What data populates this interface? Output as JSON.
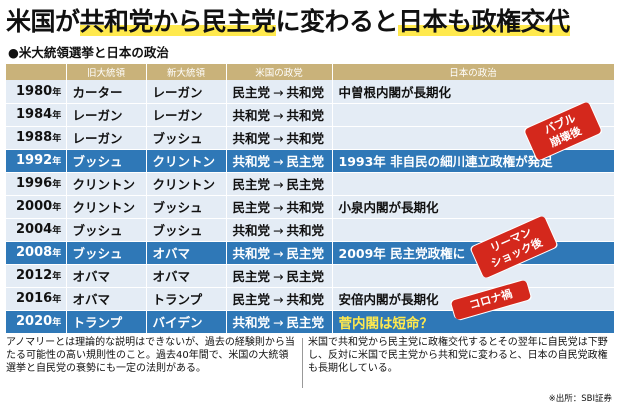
{
  "headline": {
    "part1": "米国が",
    "part2": "共和党から民主党",
    "part3": "に変わると",
    "part4": "日本も政権交代"
  },
  "subtitle": "●米大統領選挙と日本の政治",
  "table": {
    "headers": [
      "",
      "旧大統領",
      "新大統領",
      "米国の政党",
      "日本の政治"
    ],
    "year_suffix": "年",
    "rows": [
      {
        "year": "1980",
        "old": "カーター",
        "new": "レーガン",
        "from": "民主党",
        "to": "共和党",
        "note": "中曽根内閣が長期化",
        "type": "normal"
      },
      {
        "year": "1984",
        "old": "レーガン",
        "new": "レーガン",
        "from": "共和党",
        "to": "共和党",
        "note": "",
        "type": "normal"
      },
      {
        "year": "1988",
        "old": "レーガン",
        "new": "ブッシュ",
        "from": "共和党",
        "to": "共和党",
        "note": "",
        "type": "normal"
      },
      {
        "year": "1992",
        "old": "ブッシュ",
        "new": "クリントン",
        "from": "共和党",
        "to": "民主党",
        "note": "1993年 非自民の細川連立政権が発足",
        "type": "change"
      },
      {
        "year": "1996",
        "old": "クリントン",
        "new": "クリントン",
        "from": "民主党",
        "to": "民主党",
        "note": "",
        "type": "normal"
      },
      {
        "year": "2000",
        "old": "クリントン",
        "new": "ブッシュ",
        "from": "民主党",
        "to": "共和党",
        "note": "小泉内閣が長期化",
        "type": "normal"
      },
      {
        "year": "2004",
        "old": "ブッシュ",
        "new": "ブッシュ",
        "from": "共和党",
        "to": "共和党",
        "note": "",
        "type": "normal"
      },
      {
        "year": "2008",
        "old": "ブッシュ",
        "new": "オバマ",
        "from": "共和党",
        "to": "民主党",
        "note": "2009年 民主党政権に",
        "type": "change"
      },
      {
        "year": "2012",
        "old": "オバマ",
        "new": "オバマ",
        "from": "民主党",
        "to": "民主党",
        "note": "",
        "type": "normal"
      },
      {
        "year": "2016",
        "old": "オバマ",
        "new": "トランプ",
        "from": "民主党",
        "to": "共和党",
        "note": "安倍内閣が長期化",
        "type": "normal"
      },
      {
        "year": "2020",
        "old": "トランプ",
        "new": "バイデン",
        "from": "共和党",
        "to": "民主党",
        "note": "菅内閣は短命？",
        "type": "change"
      }
    ]
  },
  "callouts": {
    "bubble": "バブル\n崩壊後",
    "lehman": "リーマン\nショック後",
    "covid": "コロナ禍"
  },
  "footnotes": {
    "left": "アノマリーとは理論的な説明はできないが、過去の経験則から当たる可能性の高い規則性のこと。過去40年間で、米国の大統領選挙と自民党の衰勢にも一定の法則がある。",
    "right": "米国で共和党から民主党に政権交代するとその翌年に自民党は下野し、反対に米国で民主党から共和党に変わると、日本の自民党政権も長期化している。"
  },
  "source": "※出所：SBI証券",
  "colors": {
    "header_bg": "#c9b27a",
    "row_normal": "#e4ecf5",
    "row_change": "#2f78b7",
    "highlight": "#ffe94d",
    "callout": "#d4281c"
  }
}
